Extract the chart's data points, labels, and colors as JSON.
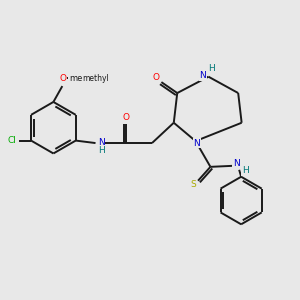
{
  "background_color": "#e8e8e8",
  "bond_color": "#1a1a1a",
  "atom_colors": {
    "O": "#ff0000",
    "N": "#0000cc",
    "Cl": "#00aa00",
    "S": "#aaaa00",
    "H": "#007777",
    "C": "#1a1a1a"
  },
  "figsize": [
    3.0,
    3.0
  ],
  "dpi": 100,
  "lw": 1.4,
  "fontsize": 6.5
}
